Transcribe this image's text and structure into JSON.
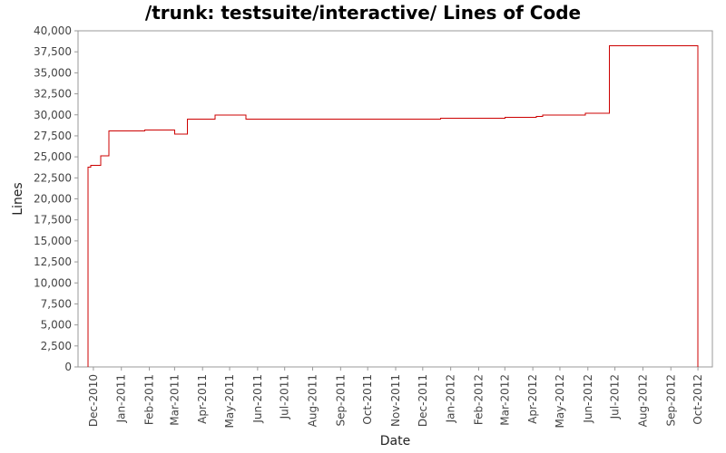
{
  "chart_data": {
    "type": "line",
    "title": "/trunk: testsuite/interactive/ Lines of Code",
    "xlabel": "Date",
    "ylabel": "Lines",
    "ylim": [
      0,
      40000
    ],
    "yticks": [
      0,
      2500,
      5000,
      7500,
      10000,
      12500,
      15000,
      17500,
      20000,
      22500,
      25000,
      27500,
      30000,
      32500,
      35000,
      37500,
      40000
    ],
    "ytick_labels": [
      "0",
      "2,500",
      "5,000",
      "7,500",
      "10,000",
      "12,500",
      "15,000",
      "17,500",
      "20,000",
      "22,500",
      "25,000",
      "27,500",
      "30,000",
      "32,500",
      "35,000",
      "37,500",
      "40,000"
    ],
    "xlim": [
      "2010-11-14",
      "2012-10-17"
    ],
    "xticks": [
      "2010-12-01",
      "2011-01-01",
      "2011-02-01",
      "2011-03-01",
      "2011-04-01",
      "2011-05-01",
      "2011-06-01",
      "2011-07-01",
      "2011-08-01",
      "2011-09-01",
      "2011-10-01",
      "2011-11-01",
      "2011-12-01",
      "2012-01-01",
      "2012-02-01",
      "2012-03-01",
      "2012-04-01",
      "2012-05-01",
      "2012-06-01",
      "2012-07-01",
      "2012-08-01",
      "2012-09-01",
      "2012-10-01"
    ],
    "xtick_labels": [
      "Dec-2010",
      "Jan-2011",
      "Feb-2011",
      "Mar-2011",
      "Apr-2011",
      "May-2011",
      "Jun-2011",
      "Jul-2011",
      "Aug-2011",
      "Sep-2011",
      "Oct-2011",
      "Nov-2011",
      "Dec-2011",
      "Jan-2012",
      "Feb-2012",
      "Mar-2012",
      "Apr-2012",
      "May-2012",
      "Jun-2012",
      "Jul-2012",
      "Aug-2012",
      "Sep-2012",
      "Oct-2012"
    ],
    "step": true,
    "line_color": "#cc0000",
    "grid": false,
    "legend": "none",
    "series": [
      {
        "points": [
          {
            "x": "2010-11-25",
            "y": 0
          },
          {
            "x": "2010-11-25",
            "y": 23800
          },
          {
            "x": "2010-11-28",
            "y": 24000
          },
          {
            "x": "2010-12-09",
            "y": 25100
          },
          {
            "x": "2010-12-18",
            "y": 28100
          },
          {
            "x": "2011-01-27",
            "y": 28200
          },
          {
            "x": "2011-03-01",
            "y": 27700
          },
          {
            "x": "2011-03-15",
            "y": 29500
          },
          {
            "x": "2011-04-15",
            "y": 30000
          },
          {
            "x": "2011-05-19",
            "y": 29500
          },
          {
            "x": "2011-12-21",
            "y": 29600
          },
          {
            "x": "2012-03-01",
            "y": 29700
          },
          {
            "x": "2012-04-05",
            "y": 29800
          },
          {
            "x": "2012-04-12",
            "y": 30000
          },
          {
            "x": "2012-05-29",
            "y": 30200
          },
          {
            "x": "2012-06-25",
            "y": 38200
          },
          {
            "x": "2012-10-01",
            "y": 0
          }
        ]
      }
    ]
  }
}
